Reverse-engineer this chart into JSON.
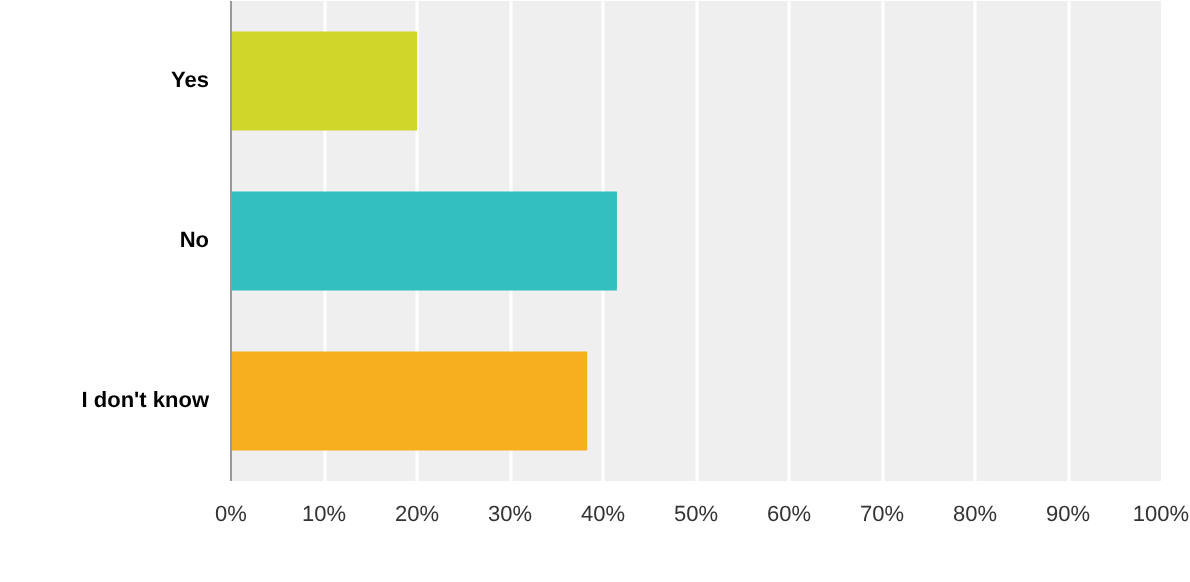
{
  "chart_data": {
    "type": "bar",
    "orientation": "horizontal",
    "categories": [
      "Yes",
      "No",
      "I don't know"
    ],
    "values": [
      20,
      41.5,
      38.3
    ],
    "colors": [
      "#d0d62a",
      "#33bfbf",
      "#f7af1f"
    ],
    "xlim": [
      0,
      100
    ],
    "xticks": [
      {
        "value": 0,
        "label": "0%"
      },
      {
        "value": 10,
        "label": "10%"
      },
      {
        "value": 20,
        "label": "20%"
      },
      {
        "value": 30,
        "label": "30%"
      },
      {
        "value": 40,
        "label": "40%"
      },
      {
        "value": 50,
        "label": "50%"
      },
      {
        "value": 60,
        "label": "60%"
      },
      {
        "value": 70,
        "label": "70%"
      },
      {
        "value": 80,
        "label": "80%"
      },
      {
        "value": 90,
        "label": "90%"
      },
      {
        "value": 100,
        "label": "100%"
      }
    ],
    "grid": "x"
  }
}
